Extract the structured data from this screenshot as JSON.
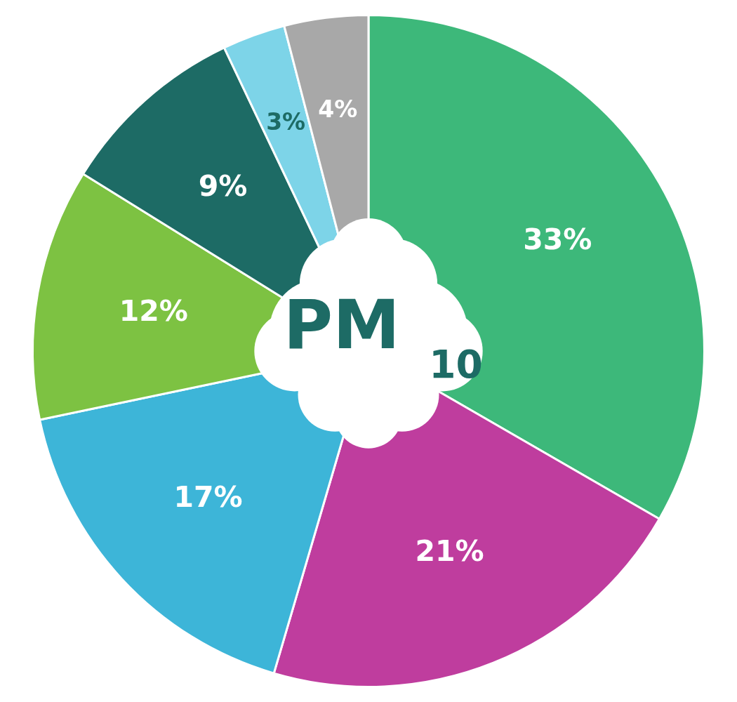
{
  "chart_data": {
    "type": "pie",
    "values": [
      33,
      21,
      17,
      12,
      9,
      3,
      4
    ],
    "value_labels": [
      "33%",
      "21%",
      "17%",
      "12%",
      "9%",
      "3%",
      "4%"
    ],
    "colors": [
      "#3db87a",
      "#bf3d9e",
      "#3db5d8",
      "#7dc242",
      "#1d6b65",
      "#7dd4e8",
      "#a8a8a8"
    ],
    "data_labels": true,
    "annotations": [
      "PM",
      "10"
    ]
  }
}
